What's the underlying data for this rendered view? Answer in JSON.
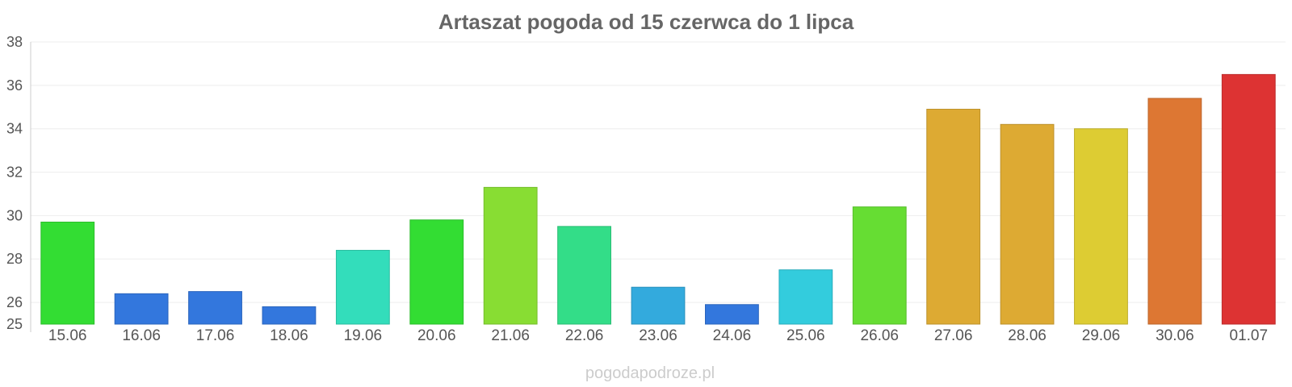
{
  "chart_data": {
    "type": "bar",
    "title": "Artaszat pogoda od 15 czerwca do 1 lipca",
    "xlabel": "",
    "ylabel": "",
    "categories": [
      "15.06",
      "16.06",
      "17.06",
      "18.06",
      "19.06",
      "20.06",
      "21.06",
      "22.06",
      "23.06",
      "24.06",
      "25.06",
      "26.06",
      "27.06",
      "28.06",
      "29.06",
      "30.06",
      "01.07"
    ],
    "values": [
      29.7,
      26.4,
      26.5,
      25.8,
      28.4,
      29.8,
      31.3,
      29.5,
      26.7,
      25.9,
      27.5,
      30.4,
      34.9,
      34.2,
      34.0,
      35.4,
      36.5
    ],
    "colors": [
      "#33dd33",
      "#3377dd",
      "#3377dd",
      "#3377dd",
      "#33ddbb",
      "#33dd33",
      "#88dd33",
      "#33dd88",
      "#33aadd",
      "#3377dd",
      "#33ccdd",
      "#66dd33",
      "#ddaa33",
      "#ddaa33",
      "#ddcc33",
      "#dd7733",
      "#dd3333"
    ],
    "ylim": [
      25,
      38
    ],
    "yticks": [
      25,
      26,
      28,
      30,
      32,
      34,
      36,
      38
    ],
    "grid": true,
    "legend": "none"
  },
  "watermark": "pogodapodroze.pl"
}
